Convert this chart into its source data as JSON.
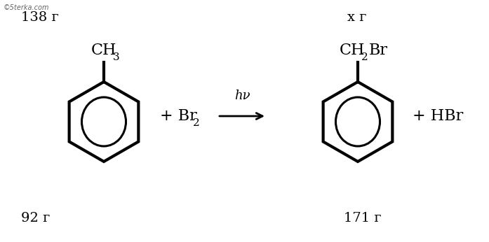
{
  "bg_color": "#ffffff",
  "text_color": "#000000",
  "watermark": "©5terka.com",
  "label_138": "138 г",
  "label_x": "x г",
  "label_92": "92 г",
  "label_171": "171 г",
  "ch3_label": "CH",
  "ch3_sub": "3",
  "ch2br_main": "CH",
  "ch2br_sub": "2",
  "ch2br_end": "Br",
  "hv_label": "hν",
  "plus2": "+ HBr",
  "lw_ring": 3.0,
  "lw_inner": 2.2,
  "figsize": [
    6.97,
    3.46
  ],
  "dpi": 100
}
